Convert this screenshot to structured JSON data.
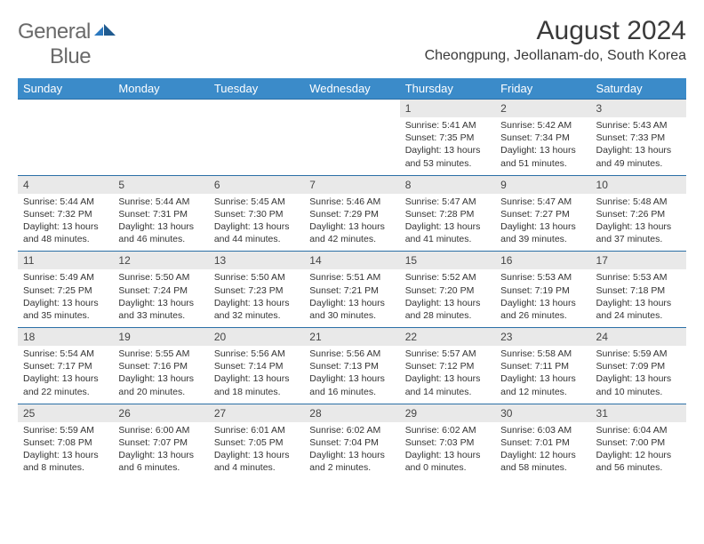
{
  "brand": {
    "word1": "General",
    "word2": "Blue"
  },
  "title": "August 2024",
  "location": "Cheongpung, Jeollanam-do, South Korea",
  "colors": {
    "header_bg": "#3b8bc9",
    "header_text": "#ffffff",
    "daynum_bg": "#e9e9e9",
    "border": "#2b6fa6",
    "brand_gray": "#6a6a6a",
    "brand_blue": "#2b78bf"
  },
  "day_names": [
    "Sunday",
    "Monday",
    "Tuesday",
    "Wednesday",
    "Thursday",
    "Friday",
    "Saturday"
  ],
  "weeks": [
    [
      null,
      null,
      null,
      null,
      {
        "n": "1",
        "sr": "5:41 AM",
        "ss": "7:35 PM",
        "dl": "13 hours and 53 minutes."
      },
      {
        "n": "2",
        "sr": "5:42 AM",
        "ss": "7:34 PM",
        "dl": "13 hours and 51 minutes."
      },
      {
        "n": "3",
        "sr": "5:43 AM",
        "ss": "7:33 PM",
        "dl": "13 hours and 49 minutes."
      }
    ],
    [
      {
        "n": "4",
        "sr": "5:44 AM",
        "ss": "7:32 PM",
        "dl": "13 hours and 48 minutes."
      },
      {
        "n": "5",
        "sr": "5:44 AM",
        "ss": "7:31 PM",
        "dl": "13 hours and 46 minutes."
      },
      {
        "n": "6",
        "sr": "5:45 AM",
        "ss": "7:30 PM",
        "dl": "13 hours and 44 minutes."
      },
      {
        "n": "7",
        "sr": "5:46 AM",
        "ss": "7:29 PM",
        "dl": "13 hours and 42 minutes."
      },
      {
        "n": "8",
        "sr": "5:47 AM",
        "ss": "7:28 PM",
        "dl": "13 hours and 41 minutes."
      },
      {
        "n": "9",
        "sr": "5:47 AM",
        "ss": "7:27 PM",
        "dl": "13 hours and 39 minutes."
      },
      {
        "n": "10",
        "sr": "5:48 AM",
        "ss": "7:26 PM",
        "dl": "13 hours and 37 minutes."
      }
    ],
    [
      {
        "n": "11",
        "sr": "5:49 AM",
        "ss": "7:25 PM",
        "dl": "13 hours and 35 minutes."
      },
      {
        "n": "12",
        "sr": "5:50 AM",
        "ss": "7:24 PM",
        "dl": "13 hours and 33 minutes."
      },
      {
        "n": "13",
        "sr": "5:50 AM",
        "ss": "7:23 PM",
        "dl": "13 hours and 32 minutes."
      },
      {
        "n": "14",
        "sr": "5:51 AM",
        "ss": "7:21 PM",
        "dl": "13 hours and 30 minutes."
      },
      {
        "n": "15",
        "sr": "5:52 AM",
        "ss": "7:20 PM",
        "dl": "13 hours and 28 minutes."
      },
      {
        "n": "16",
        "sr": "5:53 AM",
        "ss": "7:19 PM",
        "dl": "13 hours and 26 minutes."
      },
      {
        "n": "17",
        "sr": "5:53 AM",
        "ss": "7:18 PM",
        "dl": "13 hours and 24 minutes."
      }
    ],
    [
      {
        "n": "18",
        "sr": "5:54 AM",
        "ss": "7:17 PM",
        "dl": "13 hours and 22 minutes."
      },
      {
        "n": "19",
        "sr": "5:55 AM",
        "ss": "7:16 PM",
        "dl": "13 hours and 20 minutes."
      },
      {
        "n": "20",
        "sr": "5:56 AM",
        "ss": "7:14 PM",
        "dl": "13 hours and 18 minutes."
      },
      {
        "n": "21",
        "sr": "5:56 AM",
        "ss": "7:13 PM",
        "dl": "13 hours and 16 minutes."
      },
      {
        "n": "22",
        "sr": "5:57 AM",
        "ss": "7:12 PM",
        "dl": "13 hours and 14 minutes."
      },
      {
        "n": "23",
        "sr": "5:58 AM",
        "ss": "7:11 PM",
        "dl": "13 hours and 12 minutes."
      },
      {
        "n": "24",
        "sr": "5:59 AM",
        "ss": "7:09 PM",
        "dl": "13 hours and 10 minutes."
      }
    ],
    [
      {
        "n": "25",
        "sr": "5:59 AM",
        "ss": "7:08 PM",
        "dl": "13 hours and 8 minutes."
      },
      {
        "n": "26",
        "sr": "6:00 AM",
        "ss": "7:07 PM",
        "dl": "13 hours and 6 minutes."
      },
      {
        "n": "27",
        "sr": "6:01 AM",
        "ss": "7:05 PM",
        "dl": "13 hours and 4 minutes."
      },
      {
        "n": "28",
        "sr": "6:02 AM",
        "ss": "7:04 PM",
        "dl": "13 hours and 2 minutes."
      },
      {
        "n": "29",
        "sr": "6:02 AM",
        "ss": "7:03 PM",
        "dl": "13 hours and 0 minutes."
      },
      {
        "n": "30",
        "sr": "6:03 AM",
        "ss": "7:01 PM",
        "dl": "12 hours and 58 minutes."
      },
      {
        "n": "31",
        "sr": "6:04 AM",
        "ss": "7:00 PM",
        "dl": "12 hours and 56 minutes."
      }
    ]
  ],
  "labels": {
    "sunrise": "Sunrise:",
    "sunset": "Sunset:",
    "daylight": "Daylight:"
  }
}
